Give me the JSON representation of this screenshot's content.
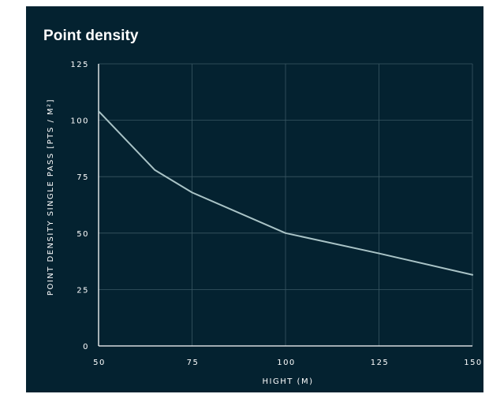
{
  "chart_data": {
    "type": "line",
    "title": "Point density",
    "xlabel": "HIGHT (M)",
    "ylabel": "POINT DENSITY SINGLE PASS [PTS / M²]",
    "xlim": [
      50,
      150
    ],
    "ylim": [
      0,
      125
    ],
    "x_ticks": [
      50,
      75,
      100,
      125,
      150
    ],
    "y_ticks": [
      0,
      25,
      50,
      75,
      100,
      125
    ],
    "grid": true,
    "series": [
      {
        "x": [
          50,
          65,
          75,
          100,
          125,
          150
        ],
        "y": [
          104,
          78,
          68,
          50,
          41,
          31.5
        ]
      }
    ],
    "colors": {
      "background": "#042230",
      "line": "#a9c3c6",
      "grid": "#3a5763",
      "axis": "#ffffff",
      "text": "#ffffff"
    }
  }
}
